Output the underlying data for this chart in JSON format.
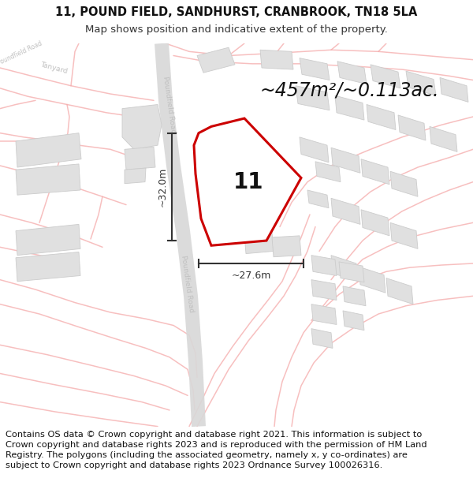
{
  "title_line1": "11, POUND FIELD, SANDHURST, CRANBROOK, TN18 5LA",
  "title_line2": "Map shows position and indicative extent of the property.",
  "area_text": "~457m²/~0.113ac.",
  "label_11": "11",
  "dim_vertical": "~32.0m",
  "dim_horizontal": "~27.6m",
  "footer_text": "Contains OS data © Crown copyright and database right 2021. This information is subject to Crown copyright and database rights 2023 and is reproduced with the permission of HM Land Registry. The polygons (including the associated geometry, namely x, y co-ordinates) are subject to Crown copyright and database rights 2023 Ordnance Survey 100026316.",
  "bg_color": "#f7f7f7",
  "plot_fill": "#ffffff",
  "plot_edge": "#cc0000",
  "road_fill": "#e8e8e8",
  "road_line": "#f5aaaa",
  "building_fill": "#e0e0e0",
  "building_edge": "#cccccc",
  "road_label": "#c0c0c0",
  "dim_color": "#333333",
  "title_fontsize": 10.5,
  "subtitle_fontsize": 9.5,
  "area_fontsize": 17,
  "label_fontsize": 20,
  "dim_fontsize": 9,
  "footer_fontsize": 8.2
}
